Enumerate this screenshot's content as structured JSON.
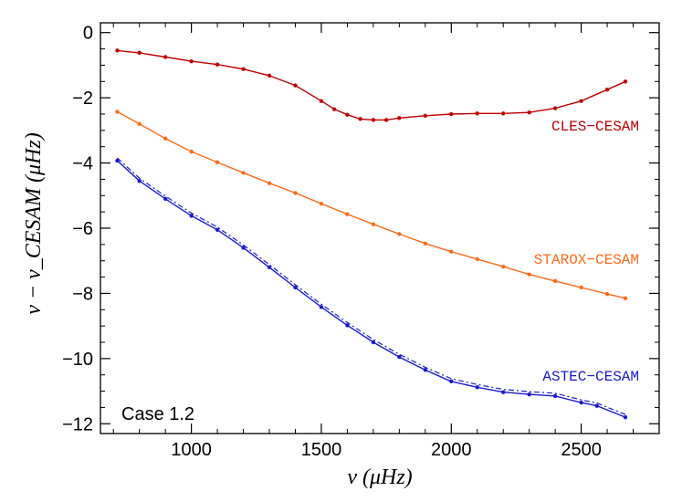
{
  "chart_data": {
    "type": "line",
    "title": "",
    "xlabel": "ν   (μHz)",
    "ylabel": "ν − ν_CESAM   (μHz)",
    "xlim": [
      650,
      2800
    ],
    "ylim": [
      -12.3,
      0.3
    ],
    "grid": false,
    "x_ticks": [
      1000,
      1500,
      2000,
      2500
    ],
    "x_tick_labels": [
      "1000",
      "1500",
      "2000",
      "2500"
    ],
    "y_ticks": [
      0,
      -2,
      -4,
      -6,
      -8,
      -10,
      -12
    ],
    "y_tick_labels": [
      "0",
      "−2",
      "−4",
      "−6",
      "−8",
      "−10",
      "−12"
    ],
    "annotation": "Case 1.2",
    "series": [
      {
        "name": "CLES−CESAM",
        "color": "#c00000",
        "x": [
          715,
          800,
          900,
          1000,
          1100,
          1200,
          1300,
          1400,
          1500,
          1550,
          1600,
          1650,
          1700,
          1750,
          1800,
          1900,
          2000,
          2100,
          2200,
          2300,
          2400,
          2500,
          2600,
          2670
        ],
        "y": [
          -0.55,
          -0.62,
          -0.75,
          -0.88,
          -0.98,
          -1.12,
          -1.32,
          -1.62,
          -2.1,
          -2.35,
          -2.52,
          -2.65,
          -2.68,
          -2.68,
          -2.62,
          -2.55,
          -2.5,
          -2.48,
          -2.48,
          -2.45,
          -2.32,
          -2.1,
          -1.75,
          -1.5
        ]
      },
      {
        "name": "STAROX−CESAM",
        "color": "#ff6a1a",
        "x": [
          715,
          800,
          900,
          1000,
          1100,
          1200,
          1300,
          1400,
          1500,
          1600,
          1700,
          1800,
          1900,
          2000,
          2100,
          2200,
          2300,
          2400,
          2500,
          2600,
          2670
        ],
        "y": [
          -2.43,
          -2.8,
          -3.25,
          -3.65,
          -3.98,
          -4.3,
          -4.62,
          -4.92,
          -5.25,
          -5.57,
          -5.88,
          -6.18,
          -6.47,
          -6.72,
          -6.95,
          -7.18,
          -7.42,
          -7.62,
          -7.82,
          -8.02,
          -8.15
        ]
      },
      {
        "name": "ASTEC−CESAM",
        "color": "#1a1ad0",
        "x": [
          715,
          800,
          900,
          1000,
          1100,
          1200,
          1300,
          1400,
          1500,
          1600,
          1700,
          1800,
          1900,
          2000,
          2100,
          2200,
          2300,
          2400,
          2500,
          2560,
          2670
        ],
        "y": [
          -3.93,
          -4.55,
          -5.1,
          -5.62,
          -6.05,
          -6.6,
          -7.2,
          -7.82,
          -8.42,
          -8.98,
          -9.5,
          -9.95,
          -10.35,
          -10.7,
          -10.88,
          -11.03,
          -11.1,
          -11.15,
          -11.35,
          -11.45,
          -11.8
        ]
      }
    ]
  }
}
